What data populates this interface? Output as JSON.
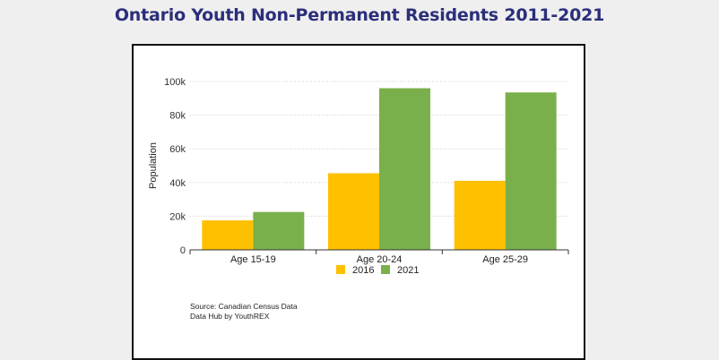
{
  "page_title": "Ontario Youth Non-Permanent Residents 2011-2021",
  "source_lines": [
    "Source: Canadian Census Data",
    "Data Hub by YouthREX"
  ],
  "chart_data": {
    "type": "bar",
    "title": "",
    "xlabel": "",
    "ylabel": "Population",
    "categories": [
      "Age 15-19",
      "Age 20-24",
      "Age 25-29"
    ],
    "ylim": [
      0,
      100000
    ],
    "yticks": [
      0,
      20000,
      40000,
      60000,
      80000,
      100000
    ],
    "ytick_labels": [
      "0",
      "20k",
      "40k",
      "60k",
      "80k",
      "100k"
    ],
    "grid": "horizontal dotted",
    "legend_position": "bottom-center",
    "series": [
      {
        "name": "2016",
        "color": "#ffc000",
        "values": [
          17500,
          45500,
          41000
        ]
      },
      {
        "name": "2021",
        "color": "#7ab04b",
        "values": [
          22500,
          96000,
          93500
        ]
      }
    ]
  }
}
